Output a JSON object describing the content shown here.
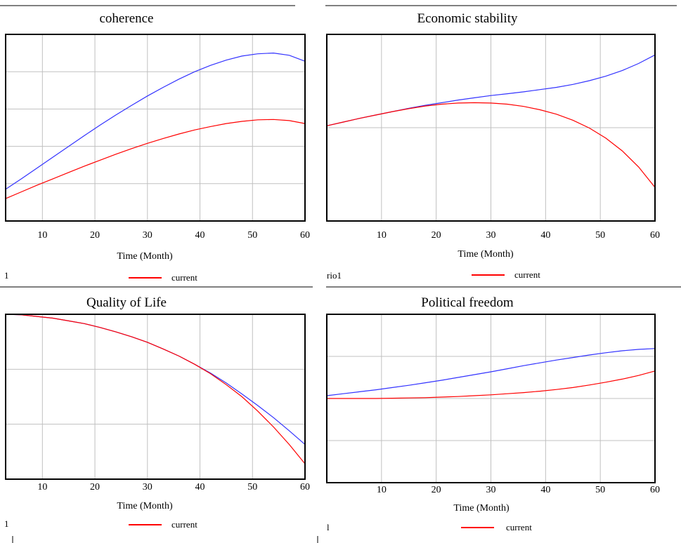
{
  "colors": {
    "current": "#ff0000",
    "other": "#3333ff",
    "grid": "#c0c0c0",
    "frame": "#000000",
    "stub_blue": "#3333ff"
  },
  "chart_data": [
    {
      "type": "line",
      "title": "coherence",
      "xlabel": "Time (Month)",
      "ylabel": "",
      "xlim": [
        3,
        60
      ],
      "ylim": [
        0,
        5
      ],
      "xticks": [
        10,
        20,
        30,
        40,
        50,
        60
      ],
      "ygrid": [
        1,
        2,
        3,
        4
      ],
      "grid": true,
      "legend": "bottom",
      "legend_label": "current",
      "stub_label": "1",
      "x": [
        3,
        6,
        9,
        12,
        15,
        18,
        21,
        24,
        27,
        30,
        33,
        36,
        39,
        42,
        45,
        48,
        51,
        54,
        57,
        60
      ],
      "series": [
        {
          "color": "#3333ff",
          "values": [
            0.85,
            1.13,
            1.42,
            1.71,
            2.0,
            2.29,
            2.57,
            2.84,
            3.1,
            3.35,
            3.58,
            3.8,
            4.0,
            4.17,
            4.31,
            4.42,
            4.48,
            4.5,
            4.44,
            4.28
          ]
        },
        {
          "name": "current",
          "color": "#ff0000",
          "values": [
            0.6,
            0.78,
            0.96,
            1.13,
            1.3,
            1.47,
            1.63,
            1.79,
            1.94,
            2.08,
            2.21,
            2.33,
            2.44,
            2.53,
            2.61,
            2.67,
            2.71,
            2.72,
            2.69,
            2.61
          ]
        }
      ]
    },
    {
      "type": "line",
      "title": "Economic stability",
      "xlabel": "Time (Month)",
      "ylabel": "",
      "xlim": [
        0,
        60
      ],
      "ylim": [
        0,
        5
      ],
      "xticks": [
        10,
        20,
        30,
        40,
        50,
        60
      ],
      "ygrid": [
        2.5
      ],
      "grid": true,
      "legend": "bottom",
      "legend_label": "current",
      "stub_label": "rio1",
      "x": [
        0,
        3,
        6,
        9,
        12,
        15,
        18,
        21,
        24,
        27,
        30,
        33,
        36,
        39,
        42,
        45,
        48,
        51,
        54,
        57,
        60
      ],
      "series": [
        {
          "color": "#3333ff",
          "values": [
            2.55,
            2.65,
            2.75,
            2.84,
            2.93,
            3.02,
            3.1,
            3.17,
            3.24,
            3.3,
            3.36,
            3.41,
            3.46,
            3.52,
            3.58,
            3.66,
            3.76,
            3.88,
            4.03,
            4.22,
            4.45
          ]
        },
        {
          "name": "current",
          "color": "#ff0000",
          "values": [
            2.55,
            2.65,
            2.75,
            2.84,
            2.93,
            3.01,
            3.08,
            3.13,
            3.16,
            3.17,
            3.16,
            3.13,
            3.07,
            2.98,
            2.86,
            2.7,
            2.49,
            2.22,
            1.88,
            1.45,
            0.9
          ]
        }
      ]
    },
    {
      "type": "line",
      "title": "Quality of Life",
      "xlabel": "Time (Month)",
      "ylabel": "",
      "xlim": [
        3,
        60
      ],
      "ylim": [
        0,
        3
      ],
      "xticks": [
        10,
        20,
        30,
        40,
        50,
        60
      ],
      "ygrid": [
        1,
        2
      ],
      "grid": true,
      "legend": "bottom",
      "legend_label": "current",
      "stub_label": "1",
      "x": [
        3,
        6,
        9,
        12,
        15,
        18,
        21,
        24,
        27,
        30,
        33,
        36,
        39,
        42,
        45,
        48,
        51,
        54,
        57,
        60
      ],
      "series": [
        {
          "color": "#3333ff",
          "values": [
            3.0,
            2.99,
            2.96,
            2.93,
            2.88,
            2.83,
            2.76,
            2.68,
            2.59,
            2.49,
            2.37,
            2.24,
            2.09,
            1.93,
            1.75,
            1.55,
            1.34,
            1.12,
            0.88,
            0.63
          ]
        },
        {
          "name": "current",
          "color": "#ff0000",
          "values": [
            3.0,
            2.99,
            2.96,
            2.93,
            2.88,
            2.83,
            2.76,
            2.68,
            2.59,
            2.49,
            2.37,
            2.24,
            2.09,
            1.92,
            1.72,
            1.5,
            1.24,
            0.95,
            0.63,
            0.28
          ]
        }
      ]
    },
    {
      "type": "line",
      "title": "Political freedom",
      "xlabel": "Time (Month)",
      "ylabel": "",
      "xlim": [
        0,
        60
      ],
      "ylim": [
        0,
        6
      ],
      "xticks": [
        10,
        20,
        30,
        40,
        50,
        60
      ],
      "ygrid": [
        1.5,
        3,
        4.5
      ],
      "grid": true,
      "legend": "bottom",
      "legend_label": "current",
      "stub_label": "l",
      "x": [
        0,
        3,
        6,
        9,
        12,
        15,
        18,
        21,
        24,
        27,
        30,
        33,
        36,
        39,
        42,
        45,
        48,
        51,
        54,
        57,
        60
      ],
      "series": [
        {
          "color": "#3333ff",
          "values": [
            3.1,
            3.17,
            3.24,
            3.31,
            3.39,
            3.47,
            3.56,
            3.65,
            3.75,
            3.85,
            3.95,
            4.06,
            4.17,
            4.27,
            4.37,
            4.46,
            4.55,
            4.63,
            4.7,
            4.75,
            4.78
          ]
        },
        {
          "name": "current",
          "color": "#ff0000",
          "values": [
            3.0,
            3.0,
            3.0,
            3.0,
            3.01,
            3.02,
            3.03,
            3.05,
            3.07,
            3.1,
            3.13,
            3.17,
            3.21,
            3.26,
            3.32,
            3.39,
            3.48,
            3.58,
            3.69,
            3.82,
            3.98
          ]
        }
      ]
    }
  ]
}
